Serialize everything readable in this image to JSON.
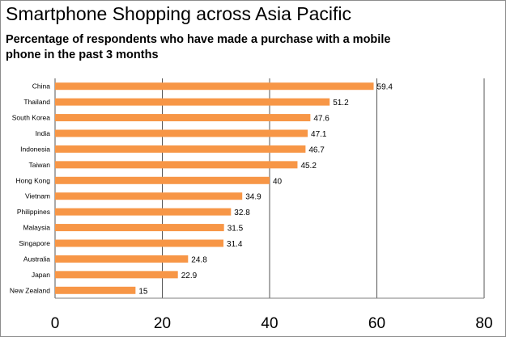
{
  "title": "Smartphone Shopping across Asia Pacific",
  "subtitle": "Percentage of respondents who have made a purchase with a mobile phone in the past 3 months",
  "colors": {
    "bar": "#f79646",
    "grid": "#555555",
    "axis": "#7f7f7f"
  },
  "chart_data": {
    "type": "bar",
    "orientation": "horizontal",
    "title": "Smartphone Shopping across Asia Pacific",
    "subtitle": "Percentage of respondents who have made a purchase with a mobile phone in the past 3 months",
    "categories": [
      "China",
      "Thailand",
      "South Korea",
      "India",
      "Indonesia",
      "Taiwan",
      "Hong Kong",
      "Vietnam",
      "Philippines",
      "Malaysia",
      "Singapore",
      "Australia",
      "Japan",
      "New Zealand"
    ],
    "values": [
      59.4,
      51.2,
      47.6,
      47.1,
      46.7,
      45.2,
      40,
      34.9,
      32.8,
      31.5,
      31.4,
      24.8,
      22.9,
      15
    ],
    "xlim": [
      0,
      80
    ],
    "xticks": [
      0,
      20,
      40,
      60,
      80
    ],
    "grid": true,
    "data_labels": true,
    "legend": "none"
  }
}
